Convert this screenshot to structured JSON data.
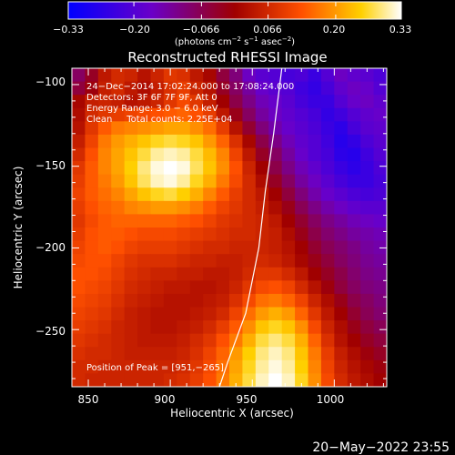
{
  "chart_data": {
    "type": "heatmap",
    "title": "Reconstructed RHESSI Image",
    "xlabel": "Heliocentric X (arcsec)",
    "ylabel": "Heliocentric Y (arcsec)",
    "xlim": [
      840,
      1032
    ],
    "ylim": [
      -285,
      -90
    ],
    "x_ticks": [
      850,
      900,
      950,
      1000
    ],
    "y_ticks": [
      -100,
      -150,
      -200,
      -250
    ],
    "x_tick_labels": [
      "850",
      "900",
      "950",
      "1000"
    ],
    "y_tick_labels": [
      "−100",
      "−150",
      "−200",
      "−250"
    ],
    "colorbar": {
      "range": [
        -0.33,
        0.33
      ],
      "ticks": [
        -0.33,
        -0.2,
        -0.066,
        0.066,
        0.2,
        0.33
      ],
      "tick_labels": [
        "−0.33",
        "−0.20",
        "−0.066",
        "0.066",
        "0.20",
        "0.33"
      ],
      "units_prefix": "(photons cm",
      "units_exp1": "−2",
      "units_mid": " s",
      "units_exp2": "−1",
      "units_mid2": " asec",
      "units_exp3": "−2",
      "units_suffix": ")"
    },
    "annotations": [
      "24−Dec−2014 17:02:24.000 to 17:08:24.000",
      "Detectors: 3F 6F 7F 9F, Att 0",
      "Energy Range: 3.0 − 6.0 keV",
      "Clean     Total counts: 2.25E+04"
    ],
    "peak_label": "Position of Peak = [951,−265]",
    "limb_curve": [
      [
        968,
        -90
      ],
      [
        963,
        -130
      ],
      [
        958,
        -165
      ],
      [
        954,
        -200
      ],
      [
        946,
        -240
      ],
      [
        935,
        -270
      ],
      [
        930,
        -285
      ]
    ],
    "color_scheme": [
      "#0000ff",
      "#6a00c8",
      "#a00000",
      "#ff5000",
      "#ffd000",
      "#ffffff"
    ],
    "image_grid": {
      "nx": 24,
      "ny": 24,
      "values": [
        [
          -0.08,
          -0.03,
          0.04,
          0.07,
          0.06,
          0.03,
          0.06,
          0.09,
          0.08,
          0.04,
          0.01,
          -0.05,
          -0.1,
          -0.16,
          -0.19,
          -0.2,
          -0.22,
          -0.21,
          -0.24,
          -0.2,
          -0.16,
          -0.18,
          -0.19,
          -0.21
        ],
        [
          -0.05,
          -0.01,
          0.05,
          0.07,
          0.04,
          0.02,
          0.05,
          0.08,
          0.1,
          0.06,
          0.03,
          -0.03,
          -0.08,
          -0.13,
          -0.17,
          -0.19,
          -0.2,
          -0.23,
          -0.25,
          -0.22,
          -0.18,
          -0.16,
          -0.17,
          -0.2
        ],
        [
          0.01,
          0.05,
          0.06,
          0.05,
          0.03,
          0.04,
          0.06,
          0.09,
          0.12,
          0.09,
          0.05,
          0.0,
          -0.06,
          -0.11,
          -0.15,
          -0.17,
          -0.19,
          -0.22,
          -0.24,
          -0.24,
          -0.2,
          -0.17,
          -0.16,
          -0.18
        ],
        [
          0.02,
          0.07,
          0.09,
          0.1,
          0.11,
          0.12,
          0.13,
          0.14,
          0.15,
          0.13,
          0.1,
          0.04,
          -0.02,
          -0.08,
          -0.13,
          -0.16,
          -0.18,
          -0.2,
          -0.22,
          -0.25,
          -0.23,
          -0.2,
          -0.18,
          -0.17
        ],
        [
          0.03,
          0.09,
          0.14,
          0.17,
          0.18,
          0.19,
          0.2,
          0.21,
          0.21,
          0.19,
          0.16,
          0.1,
          0.03,
          -0.04,
          -0.1,
          -0.14,
          -0.17,
          -0.19,
          -0.21,
          -0.24,
          -0.26,
          -0.22,
          -0.19,
          -0.18
        ],
        [
          0.05,
          0.11,
          0.17,
          0.2,
          0.22,
          0.24,
          0.26,
          0.27,
          0.26,
          0.24,
          0.2,
          0.15,
          0.08,
          0.01,
          -0.06,
          -0.11,
          -0.15,
          -0.18,
          -0.2,
          -0.23,
          -0.27,
          -0.25,
          -0.21,
          -0.19
        ],
        [
          0.07,
          0.13,
          0.18,
          0.21,
          0.24,
          0.27,
          0.3,
          0.31,
          0.3,
          0.27,
          0.23,
          0.18,
          0.11,
          0.04,
          -0.03,
          -0.08,
          -0.13,
          -0.17,
          -0.2,
          -0.22,
          -0.26,
          -0.27,
          -0.23,
          -0.2
        ],
        [
          0.09,
          0.14,
          0.18,
          0.21,
          0.25,
          0.29,
          0.32,
          0.33,
          0.32,
          0.28,
          0.24,
          0.19,
          0.13,
          0.06,
          0.0,
          -0.06,
          -0.11,
          -0.15,
          -0.18,
          -0.21,
          -0.24,
          -0.26,
          -0.24,
          -0.21
        ],
        [
          0.1,
          0.14,
          0.17,
          0.2,
          0.24,
          0.28,
          0.31,
          0.32,
          0.3,
          0.26,
          0.22,
          0.17,
          0.12,
          0.07,
          0.02,
          -0.03,
          -0.08,
          -0.13,
          -0.16,
          -0.19,
          -0.22,
          -0.24,
          -0.24,
          -0.22
        ],
        [
          0.11,
          0.14,
          0.16,
          0.18,
          0.21,
          0.24,
          0.26,
          0.27,
          0.25,
          0.22,
          0.18,
          0.14,
          0.1,
          0.07,
          0.04,
          0.0,
          -0.05,
          -0.1,
          -0.14,
          -0.17,
          -0.19,
          -0.21,
          -0.22,
          -0.21
        ],
        [
          0.1,
          0.13,
          0.15,
          0.16,
          0.18,
          0.19,
          0.2,
          0.2,
          0.19,
          0.17,
          0.14,
          0.11,
          0.09,
          0.07,
          0.05,
          0.02,
          -0.02,
          -0.07,
          -0.11,
          -0.14,
          -0.16,
          -0.18,
          -0.19,
          -0.19
        ],
        [
          0.09,
          0.12,
          0.14,
          0.15,
          0.15,
          0.15,
          0.15,
          0.15,
          0.14,
          0.13,
          0.11,
          0.09,
          0.08,
          0.07,
          0.06,
          0.04,
          0.0,
          -0.04,
          -0.08,
          -0.11,
          -0.13,
          -0.15,
          -0.16,
          -0.17
        ],
        [
          0.1,
          0.13,
          0.14,
          0.14,
          0.13,
          0.12,
          0.12,
          0.12,
          0.11,
          0.1,
          0.09,
          0.08,
          0.07,
          0.07,
          0.06,
          0.05,
          0.02,
          -0.02,
          -0.06,
          -0.09,
          -0.11,
          -0.13,
          -0.14,
          -0.15
        ],
        [
          0.11,
          0.13,
          0.14,
          0.13,
          0.11,
          0.1,
          0.1,
          0.1,
          0.09,
          0.08,
          0.07,
          0.07,
          0.06,
          0.06,
          0.06,
          0.05,
          0.03,
          0.0,
          -0.04,
          -0.07,
          -0.09,
          -0.11,
          -0.13,
          -0.14
        ],
        [
          0.12,
          0.13,
          0.13,
          0.11,
          0.09,
          0.08,
          0.08,
          0.08,
          0.07,
          0.06,
          0.06,
          0.05,
          0.05,
          0.06,
          0.07,
          0.06,
          0.04,
          0.01,
          -0.02,
          -0.05,
          -0.08,
          -0.1,
          -0.12,
          -0.13
        ],
        [
          0.13,
          0.13,
          0.12,
          0.1,
          0.08,
          0.07,
          0.06,
          0.06,
          0.05,
          0.05,
          0.04,
          0.04,
          0.05,
          0.07,
          0.09,
          0.09,
          0.07,
          0.04,
          0.0,
          -0.03,
          -0.06,
          -0.09,
          -0.11,
          -0.12
        ],
        [
          0.13,
          0.12,
          0.11,
          0.09,
          0.07,
          0.06,
          0.05,
          0.04,
          0.04,
          0.03,
          0.03,
          0.04,
          0.06,
          0.09,
          0.12,
          0.13,
          0.11,
          0.07,
          0.03,
          -0.01,
          -0.05,
          -0.08,
          -0.1,
          -0.11
        ],
        [
          0.12,
          0.11,
          0.1,
          0.08,
          0.06,
          0.05,
          0.04,
          0.03,
          0.03,
          0.03,
          0.04,
          0.05,
          0.08,
          0.12,
          0.16,
          0.17,
          0.15,
          0.11,
          0.06,
          0.02,
          -0.02,
          -0.06,
          -0.08,
          -0.1
        ],
        [
          0.11,
          0.1,
          0.09,
          0.07,
          0.05,
          0.04,
          0.03,
          0.03,
          0.03,
          0.04,
          0.05,
          0.07,
          0.11,
          0.16,
          0.2,
          0.22,
          0.2,
          0.15,
          0.09,
          0.04,
          0.0,
          -0.04,
          -0.07,
          -0.09
        ],
        [
          0.1,
          0.09,
          0.08,
          0.06,
          0.05,
          0.04,
          0.03,
          0.03,
          0.04,
          0.05,
          0.07,
          0.1,
          0.14,
          0.19,
          0.24,
          0.26,
          0.24,
          0.19,
          0.12,
          0.06,
          0.02,
          -0.02,
          -0.05,
          -0.07
        ],
        [
          0.09,
          0.08,
          0.07,
          0.06,
          0.05,
          0.04,
          0.04,
          0.04,
          0.05,
          0.07,
          0.09,
          0.13,
          0.17,
          0.22,
          0.27,
          0.29,
          0.27,
          0.22,
          0.15,
          0.08,
          0.03,
          0.0,
          -0.03,
          -0.05
        ],
        [
          0.08,
          0.07,
          0.07,
          0.06,
          0.05,
          0.05,
          0.05,
          0.05,
          0.06,
          0.08,
          0.11,
          0.15,
          0.2,
          0.25,
          0.29,
          0.31,
          0.29,
          0.24,
          0.17,
          0.1,
          0.05,
          0.02,
          -0.01,
          -0.03
        ],
        [
          0.07,
          0.07,
          0.06,
          0.06,
          0.06,
          0.06,
          0.06,
          0.06,
          0.07,
          0.09,
          0.12,
          0.16,
          0.21,
          0.26,
          0.3,
          0.32,
          0.3,
          0.25,
          0.18,
          0.11,
          0.06,
          0.03,
          0.01,
          -0.01
        ],
        [
          0.07,
          0.06,
          0.06,
          0.06,
          0.06,
          0.06,
          0.06,
          0.07,
          0.08,
          0.1,
          0.13,
          0.17,
          0.22,
          0.27,
          0.31,
          0.33,
          0.31,
          0.26,
          0.19,
          0.12,
          0.07,
          0.04,
          0.02,
          0.0
        ]
      ]
    }
  },
  "footer": {
    "timestamp": "20−May−2022 23:55"
  }
}
